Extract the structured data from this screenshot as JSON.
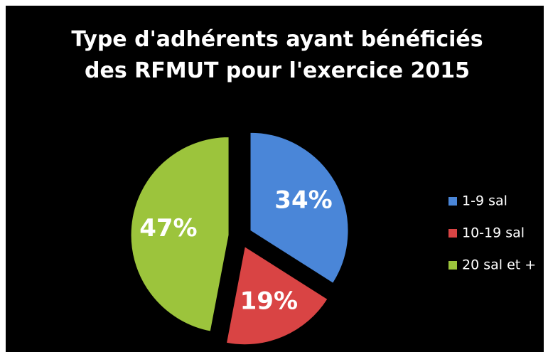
{
  "chart_data": {
    "type": "pie",
    "title": "Type d'adhérents ayant bénéficiés des RFMUT pour l'exercice 2015",
    "categories": [
      "1-9 sal",
      "10-19 sal",
      "20 sal et +"
    ],
    "values": [
      34,
      19,
      47
    ],
    "value_labels": [
      "34%",
      "19%",
      "47%"
    ],
    "colors": [
      "#4a86d8",
      "#d94444",
      "#9cc43c"
    ],
    "legend": "right"
  }
}
